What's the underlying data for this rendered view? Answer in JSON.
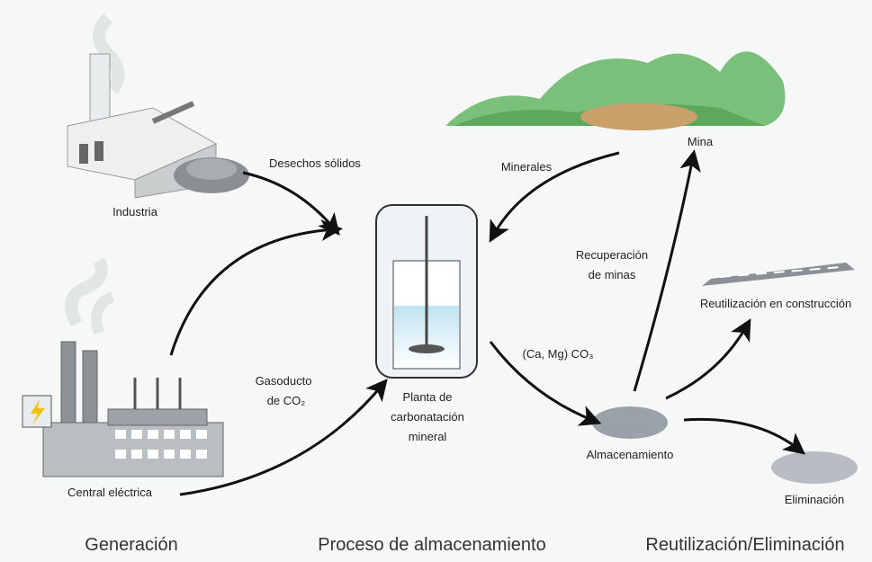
{
  "nodes": [
    {
      "label": [
        "Industria"
      ]
    },
    {
      "label": [
        "Central eléctrica"
      ]
    },
    {
      "label": [
        "Planta de",
        "carbonatación",
        "mineral"
      ]
    },
    {
      "label": [
        "Mina"
      ]
    },
    {
      "label": [
        "Almacenamiento"
      ]
    },
    {
      "label": [
        "Reutilización en construcción"
      ]
    },
    {
      "label": [
        "Eliminación"
      ]
    }
  ],
  "edges": [
    {
      "label": [
        "Desechos sólidos"
      ]
    },
    {
      "label": [
        "Gasoducto",
        "de CO₂"
      ]
    },
    {
      "label": [
        "Minerales"
      ]
    },
    {
      "label": [
        "(Ca, Mg) CO₃"
      ]
    },
    {
      "label": [
        "Recuperación",
        "de minas"
      ]
    }
  ],
  "sections": [
    "Generación",
    "Proceso de almacenamiento",
    "Reutilización/Eliminación"
  ]
}
